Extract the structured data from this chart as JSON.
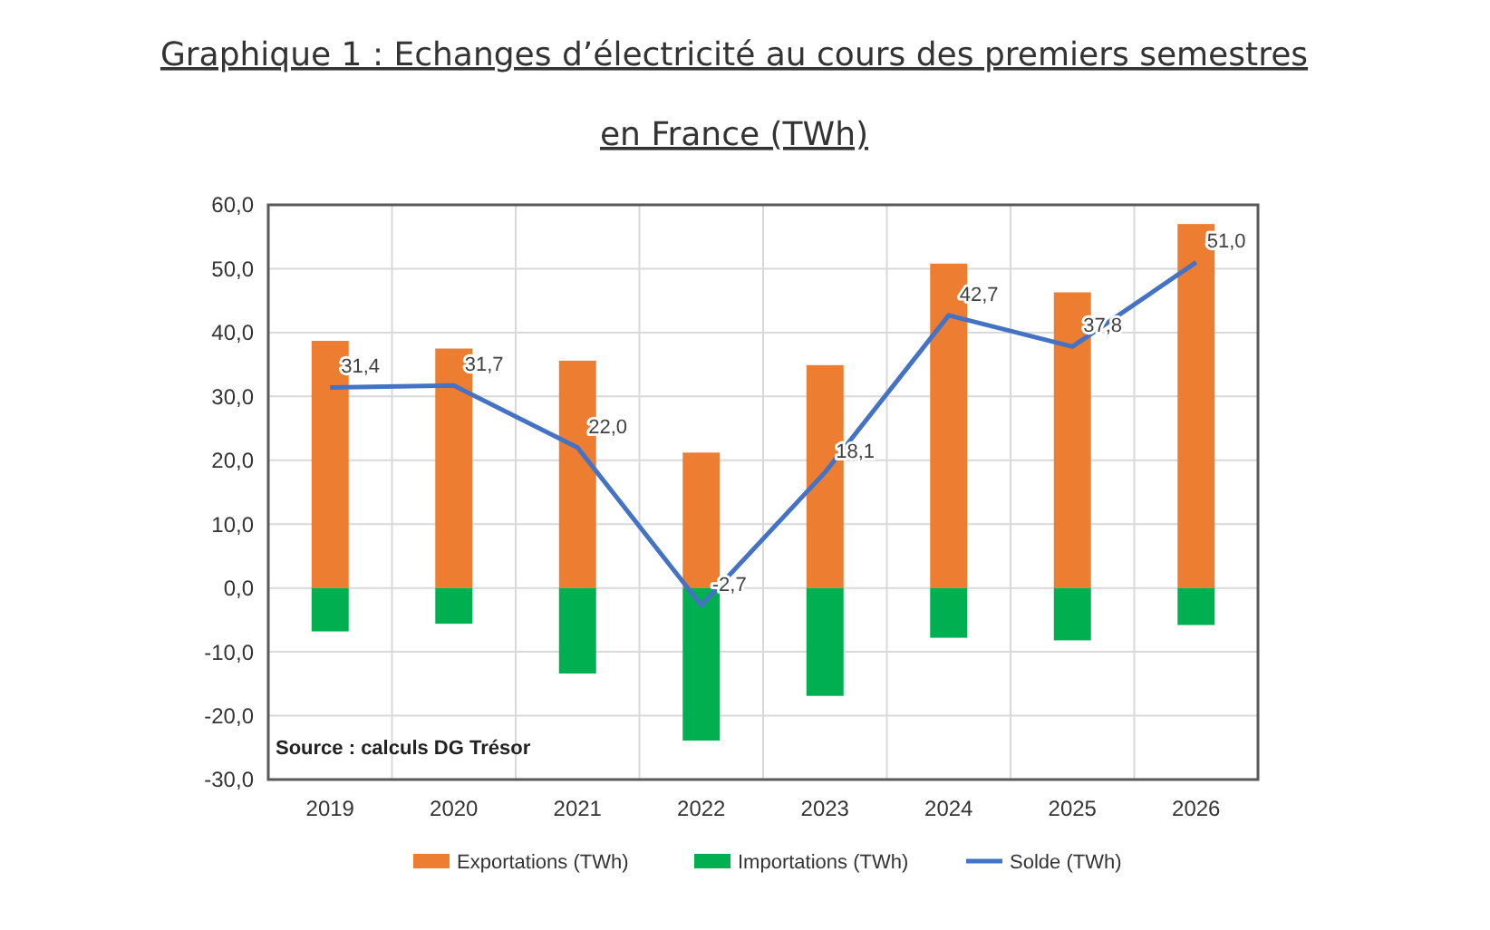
{
  "chart_data": {
    "type": "bar",
    "title": "Graphique 1 : Echanges d’électricité au cours des premiers semestres en France (TWh)",
    "categories": [
      "2019",
      "2020",
      "2021",
      "2022",
      "2023",
      "2024",
      "2025",
      "2026"
    ],
    "stacked": true,
    "series": [
      {
        "name": "Exportations (TWh)",
        "color": "#ed7d31",
        "values": [
          38.7,
          37.5,
          35.6,
          21.2,
          34.9,
          50.8,
          46.3,
          57.0
        ]
      },
      {
        "name": "Importations (TWh)",
        "color": "#00b050",
        "values": [
          -6.8,
          -5.6,
          -13.4,
          -23.9,
          -16.9,
          -7.8,
          -8.2,
          -5.8
        ]
      },
      {
        "name": "Solde (TWh)",
        "type": "line",
        "color": "#4472c4",
        "values": [
          31.4,
          31.7,
          22.0,
          -2.7,
          18.1,
          42.7,
          37.8,
          51.0
        ],
        "value_labels": [
          "31,4",
          "31,7",
          "22,0",
          "-2,7",
          "18,1",
          "42,7",
          "37,8",
          "51,0"
        ]
      }
    ],
    "ylim": [
      -30,
      60
    ],
    "yticks": [
      {
        "value": -30,
        "label": "-30,0"
      },
      {
        "value": -20,
        "label": "-20,0"
      },
      {
        "value": -10,
        "label": "-10,0"
      },
      {
        "value": 0,
        "label": "0,0"
      },
      {
        "value": 10,
        "label": "10,0"
      },
      {
        "value": 20,
        "label": "20,0"
      },
      {
        "value": 30,
        "label": "30,0"
      },
      {
        "value": 40,
        "label": "40,0"
      },
      {
        "value": 50,
        "label": "50,0"
      },
      {
        "value": 60,
        "label": "60,0"
      }
    ],
    "grid": true,
    "legend": "bottom",
    "marker": "none",
    "line_style": "solid",
    "annotations": [
      "Source : calculs DG Trésor"
    ]
  }
}
